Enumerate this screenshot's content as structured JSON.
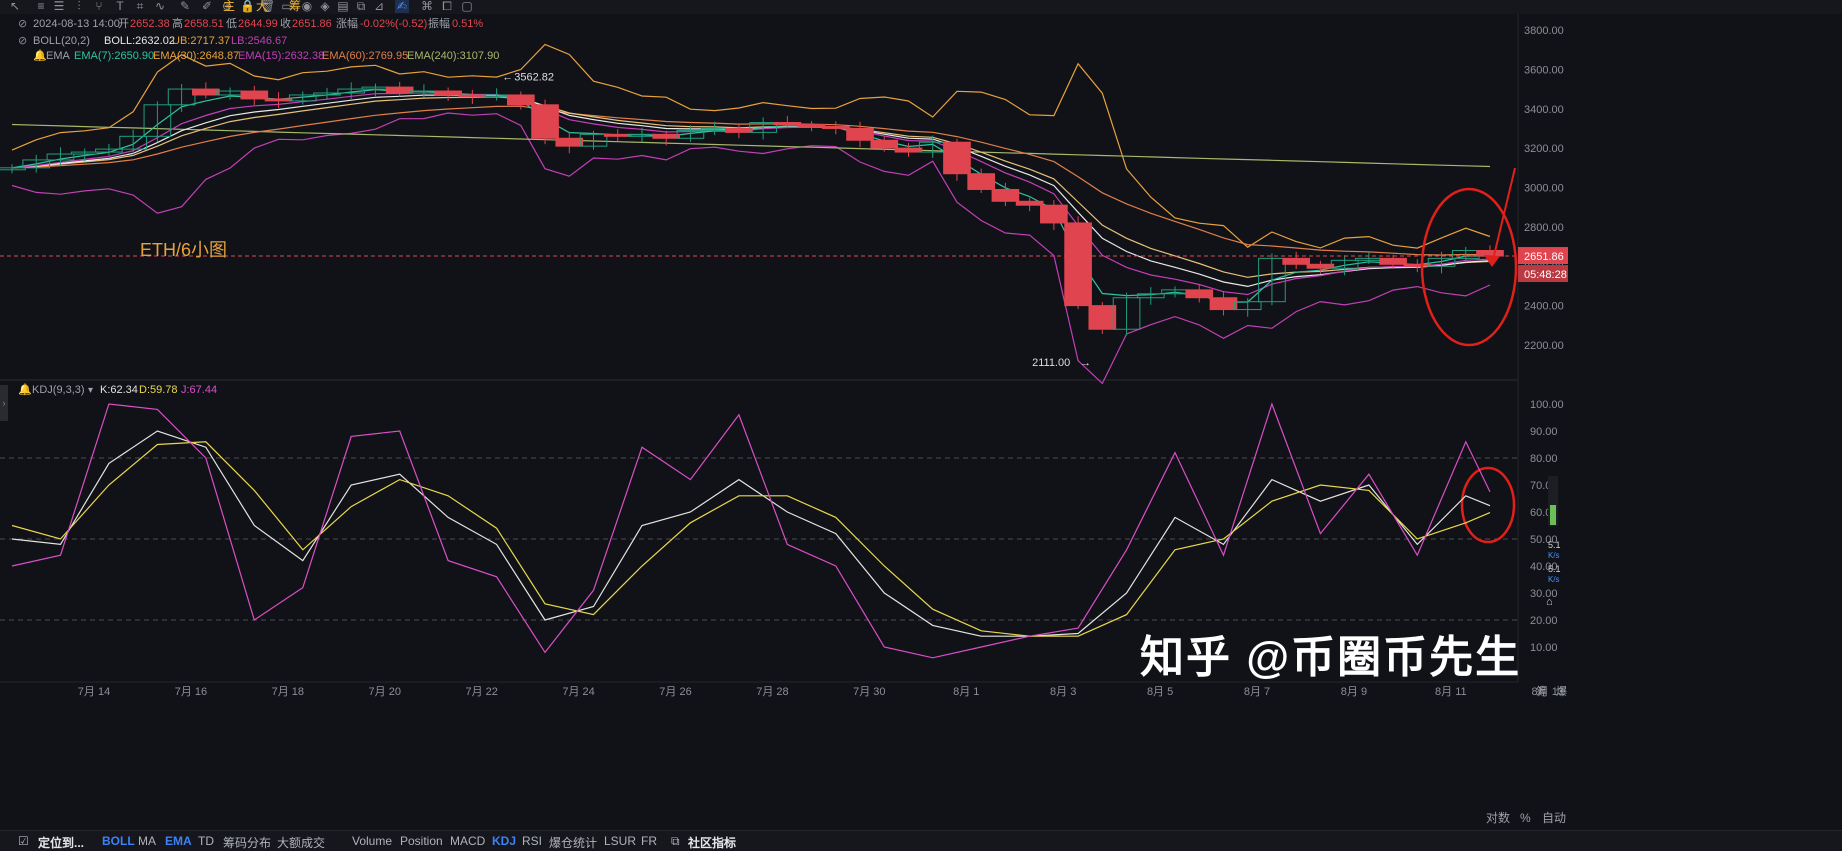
{
  "toolbar": {
    "icons": [
      "cursor-icon",
      "lines-icon",
      "hlines-icon",
      "bars-icon",
      "fork-icon",
      "text-icon",
      "fib-icon",
      "wave-icon",
      "pen-icon",
      "brush-icon",
      "magnet-icon",
      "lock-icon",
      "trash-icon",
      "rect-icon",
      "eye-icon",
      "drop-icon",
      "layer-icon",
      "copy-icon",
      "measure-icon",
      "draw-icon",
      "pattern-icon",
      "dup-icon",
      "file-icon"
    ],
    "labels": [
      "主",
      "大",
      "筹"
    ]
  },
  "info": {
    "date": "2024-08-13 14:00",
    "open_label": "开",
    "open": "2652.38",
    "high_label": "高",
    "high": "2658.51",
    "low_label": "低",
    "low": "2644.99",
    "close_label": "收",
    "close": "2651.86",
    "chg_label": "涨幅",
    "chg": "-0.02%(-0.52)",
    "amp_label": "振幅",
    "amp": "0.51%"
  },
  "boll": {
    "name": "BOLL(20,2)",
    "mid": "BOLL:2632.02",
    "ub": "UB:2717.37",
    "lb": "LB:2546.67"
  },
  "ema": {
    "name": "EMA",
    "e7": "EMA(7):2650.90",
    "e30": "EMA(30):2648.87",
    "e15": "EMA(15):2632.38",
    "e60": "EMA(60):2769.95",
    "e240": "EMA(240):3107.90"
  },
  "kdj": {
    "name": "KDJ(9,3,3)",
    "k": "K:62.34",
    "d": "D:59.78",
    "j": "J:67.44"
  },
  "overlay": {
    "pair_label": "ETH/6小图",
    "high_mark": "3562.82",
    "low_mark": "2111.00",
    "price_tag": "2651.86",
    "time_tag": "05:48:28"
  },
  "watermark": "知乎 @币圈币先生",
  "colors": {
    "up": "#1f9e7d",
    "down": "#e0454f",
    "ema7": "#2fc4a0",
    "ema15": "#c23fb6",
    "ema30": "#e8a23c",
    "ema60": "#e07e4a",
    "ema240": "#a6b86a",
    "boll": "#e8e8e8",
    "k": "#e3e3e3",
    "d": "#e8d84c",
    "j": "#d94fc7",
    "annot": "#e0201a"
  },
  "side_widgets": {
    "speed1": "5.1",
    "speed1_unit": "K/s",
    "speed2": "5.1",
    "speed2_unit": "K/s"
  },
  "corner_labels": {
    "l1": "对数",
    "l2": "%",
    "l3": "自动",
    "l4": "筹",
    "l5": "爆"
  },
  "bottombar": {
    "first": "定位到...",
    "items": [
      "BOLL",
      "MA",
      "EMA",
      "TD",
      "筹码分布",
      "大额成交",
      "Volume",
      "Position",
      "MACD",
      "KDJ",
      "RSI",
      "爆仓统计",
      "LSUR",
      "FR"
    ],
    "active": [
      "BOLL",
      "EMA",
      "KDJ"
    ],
    "community": "社区指标"
  },
  "chart_data": [
    {
      "type": "candlestick",
      "title": "ETH/6小图",
      "ylim": [
        2100,
        3850
      ],
      "y_ticks": [
        2200,
        2400,
        2600,
        2800,
        3000,
        3200,
        3400,
        3600,
        3800
      ],
      "x_ticks": [
        "7月 14",
        "7月 16",
        "7月 18",
        "7月 20",
        "7月 22",
        "7月 24",
        "7月 26",
        "7月 28",
        "7月 30",
        "8月 1",
        "8月 3",
        "8月 5",
        "8月 7",
        "8月 9",
        "8月 11",
        "8月 13"
      ],
      "x_range": [
        0,
        31
      ],
      "last_price": 2651.86,
      "annotations": [
        {
          "text": "3562.82",
          "x": 10.2,
          "y": 3562.82
        },
        {
          "text": "2111.00",
          "x": 22.0,
          "y": 2111.0
        }
      ],
      "series_close": [
        {
          "name": "price",
          "x": [
            0.0,
            0.5,
            1.0,
            1.5,
            2.0,
            2.5,
            3.0,
            3.5,
            4.0,
            4.5,
            5.0,
            5.5,
            6.0,
            6.5,
            7.0,
            7.5,
            8.0,
            8.5,
            9.0,
            9.5,
            10.0,
            10.5,
            11.0,
            11.5,
            12.0,
            12.5,
            13.0,
            13.5,
            14.0,
            14.5,
            15.0,
            15.5,
            16.0,
            16.5,
            17.0,
            17.5,
            18.0,
            18.5,
            19.0,
            19.5,
            20.0,
            20.5,
            21.0,
            21.5,
            22.0,
            22.5,
            23.0,
            23.5,
            24.0,
            24.5,
            25.0,
            25.5,
            26.0,
            26.5,
            27.0,
            27.5,
            28.0,
            28.5,
            29.0,
            29.5,
            30.0,
            30.5
          ],
          "y": [
            3100,
            3140,
            3170,
            3180,
            3195,
            3260,
            3420,
            3500,
            3470,
            3490,
            3450,
            3440,
            3470,
            3480,
            3500,
            3510,
            3480,
            3490,
            3470,
            3460,
            3470,
            3420,
            3250,
            3210,
            3270,
            3260,
            3270,
            3250,
            3290,
            3300,
            3280,
            3330,
            3320,
            3310,
            3300,
            3240,
            3200,
            3180,
            3230,
            3070,
            2990,
            2930,
            2910,
            2820,
            2400,
            2280,
            2440,
            2460,
            2480,
            2440,
            2380,
            2420,
            2640,
            2610,
            2590,
            2630,
            2640,
            2610,
            2600,
            2640,
            2680,
            2651.86
          ]
        }
      ]
    },
    {
      "type": "line",
      "title": "KDJ(9,3,3)",
      "ylim": [
        0,
        105
      ],
      "y_ticks": [
        10,
        20,
        30,
        40,
        50,
        60,
        70,
        80,
        90,
        100
      ],
      "x_range": [
        0,
        31
      ],
      "series": [
        {
          "name": "K",
          "x": [
            0,
            1,
            2,
            3,
            4,
            5,
            6,
            7,
            8,
            9,
            10,
            11,
            12,
            13,
            14,
            15,
            16,
            17,
            18,
            19,
            20,
            21,
            22,
            23,
            24,
            25,
            26,
            27,
            28,
            29,
            30,
            30.5
          ],
          "y": [
            50,
            48,
            78,
            90,
            84,
            55,
            42,
            70,
            74,
            58,
            48,
            20,
            25,
            55,
            60,
            72,
            60,
            52,
            30,
            18,
            14,
            14,
            15,
            30,
            58,
            48,
            72,
            64,
            70,
            48,
            66,
            62.34
          ]
        },
        {
          "name": "D",
          "x": [
            0,
            1,
            2,
            3,
            4,
            5,
            6,
            7,
            8,
            9,
            10,
            11,
            12,
            13,
            14,
            15,
            16,
            17,
            18,
            19,
            20,
            21,
            22,
            23,
            24,
            25,
            26,
            27,
            28,
            29,
            30,
            30.5
          ],
          "y": [
            55,
            50,
            70,
            85,
            86,
            68,
            46,
            62,
            72,
            66,
            54,
            26,
            22,
            40,
            56,
            66,
            66,
            58,
            40,
            24,
            16,
            14,
            14,
            22,
            46,
            50,
            64,
            70,
            68,
            50,
            56,
            59.78
          ]
        },
        {
          "name": "J",
          "x": [
            0,
            1,
            2,
            3,
            4,
            5,
            6,
            7,
            8,
            9,
            10,
            11,
            12,
            13,
            14,
            15,
            16,
            17,
            18,
            19,
            20,
            21,
            22,
            23,
            24,
            25,
            26,
            27,
            28,
            29,
            30,
            30.5
          ],
          "y": [
            40,
            44,
            100,
            98,
            80,
            20,
            32,
            88,
            90,
            42,
            36,
            8,
            31,
            84,
            72,
            96,
            48,
            40,
            10,
            6,
            10,
            14,
            17,
            46,
            82,
            44,
            100,
            52,
            74,
            44,
            86,
            67.44
          ]
        }
      ]
    }
  ]
}
